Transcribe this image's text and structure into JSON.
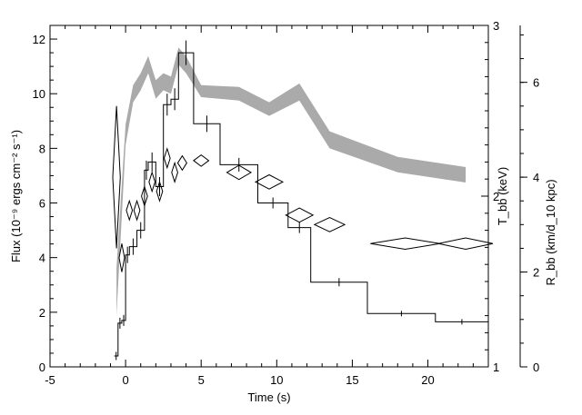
{
  "chart_data": {
    "type": "line",
    "title": "",
    "xlabel": "Time (s)",
    "ylabel_left": "Flux (10⁻⁹ ergs cm⁻² s⁻¹)",
    "ylabel_right_inner": "T_bb (keV)",
    "ylabel_right_outer": "R_bb (km/d_10 kpc)",
    "xlim": [
      -5,
      24
    ],
    "ylim_flux": [
      0,
      12.5
    ],
    "ylim_temp": [
      1,
      3
    ],
    "ylim_radius": [
      0,
      7.2
    ],
    "x_ticks": [
      -5,
      0,
      5,
      10,
      15,
      20
    ],
    "flux_ticks": [
      0,
      2,
      4,
      6,
      8,
      10,
      12
    ],
    "temp_ticks": [
      1,
      2,
      3
    ],
    "radius_ticks": [
      0,
      2,
      4,
      6
    ],
    "grid": false,
    "legend": "none",
    "series": [
      {
        "kind": "flux-histogram",
        "bins": [
          {
            "x0": -0.75,
            "x1": -0.5,
            "y": 0.4,
            "err": 0.15
          },
          {
            "x0": -0.5,
            "x1": -0.25,
            "y": 1.6,
            "err": 0.2
          },
          {
            "x0": -0.25,
            "x1": 0.0,
            "y": 1.7,
            "err": 0.2
          },
          {
            "x0": 0.0,
            "x1": 0.25,
            "y": 4.1,
            "err": 0.3
          },
          {
            "x0": 0.25,
            "x1": 0.75,
            "y": 4.4,
            "err": 0.3
          },
          {
            "x0": 0.75,
            "x1": 1.25,
            "y": 5.0,
            "err": 0.3
          },
          {
            "x0": 1.25,
            "x1": 1.5,
            "y": 7.2,
            "err": 0.35
          },
          {
            "x0": 1.5,
            "x1": 2.0,
            "y": 7.5,
            "err": 0.35
          },
          {
            "x0": 2.0,
            "x1": 2.5,
            "y": 6.6,
            "err": 0.35
          },
          {
            "x0": 2.5,
            "x1": 3.0,
            "y": 9.6,
            "err": 0.4
          },
          {
            "x0": 3.0,
            "x1": 3.5,
            "y": 9.8,
            "err": 0.4
          },
          {
            "x0": 3.5,
            "x1": 4.5,
            "y": 11.5,
            "err": 0.45
          },
          {
            "x0": 4.5,
            "x1": 6.25,
            "y": 8.9,
            "err": 0.3
          },
          {
            "x0": 6.25,
            "x1": 8.75,
            "y": 7.4,
            "err": 0.25
          },
          {
            "x0": 8.75,
            "x1": 10.75,
            "y": 6.0,
            "err": 0.2
          },
          {
            "x0": 10.75,
            "x1": 12.25,
            "y": 5.1,
            "err": 0.2
          },
          {
            "x0": 12.25,
            "x1": 16.0,
            "y": 3.1,
            "err": 0.15
          },
          {
            "x0": 16.0,
            "x1": 20.5,
            "y": 1.95,
            "err": 0.1
          },
          {
            "x0": 20.5,
            "x1": 24.0,
            "y": 1.65,
            "err": 0.1
          }
        ]
      },
      {
        "kind": "temperature-band",
        "axis": "temp",
        "points": [
          {
            "x": -0.6,
            "lo": 1.3,
            "hi": 1.58
          },
          {
            "x": 0.0,
            "lo": 2.3,
            "hi": 2.42
          },
          {
            "x": 0.5,
            "lo": 2.55,
            "hi": 2.65
          },
          {
            "x": 1.0,
            "lo": 2.62,
            "hi": 2.72
          },
          {
            "x": 1.5,
            "lo": 2.72,
            "hi": 2.82
          },
          {
            "x": 2.0,
            "lo": 2.57,
            "hi": 2.68
          },
          {
            "x": 2.5,
            "lo": 2.62,
            "hi": 2.72
          },
          {
            "x": 3.0,
            "lo": 2.6,
            "hi": 2.7
          },
          {
            "x": 3.5,
            "lo": 2.77,
            "hi": 2.87
          },
          {
            "x": 4.0,
            "lo": 2.72,
            "hi": 2.82
          },
          {
            "x": 5.0,
            "lo": 2.58,
            "hi": 2.65
          },
          {
            "x": 7.5,
            "lo": 2.56,
            "hi": 2.64
          },
          {
            "x": 9.5,
            "lo": 2.47,
            "hi": 2.55
          },
          {
            "x": 11.5,
            "lo": 2.56,
            "hi": 2.66
          },
          {
            "x": 13.5,
            "lo": 2.28,
            "hi": 2.38
          },
          {
            "x": 18.0,
            "lo": 2.14,
            "hi": 2.23
          },
          {
            "x": 22.5,
            "lo": 2.08,
            "hi": 2.17
          }
        ]
      },
      {
        "kind": "radius-diamonds",
        "axis": "radius",
        "points": [
          {
            "x": -0.6,
            "y": 4.0,
            "xerr": 0.25,
            "yerr": 1.5
          },
          {
            "x": -0.25,
            "y": 2.3,
            "xerr": 0.18,
            "yerr": 0.3
          },
          {
            "x": 0.25,
            "y": 3.3,
            "xerr": 0.2,
            "yerr": 0.2
          },
          {
            "x": 0.75,
            "y": 3.3,
            "xerr": 0.2,
            "yerr": 0.2
          },
          {
            "x": 1.25,
            "y": 3.6,
            "xerr": 0.2,
            "yerr": 0.2
          },
          {
            "x": 1.75,
            "y": 3.9,
            "xerr": 0.2,
            "yerr": 0.2
          },
          {
            "x": 2.25,
            "y": 3.7,
            "xerr": 0.2,
            "yerr": 0.2
          },
          {
            "x": 2.75,
            "y": 4.4,
            "xerr": 0.2,
            "yerr": 0.2
          },
          {
            "x": 3.25,
            "y": 4.1,
            "xerr": 0.2,
            "yerr": 0.2
          },
          {
            "x": 3.75,
            "y": 4.3,
            "xerr": 0.3,
            "yerr": 0.15
          },
          {
            "x": 5.0,
            "y": 4.35,
            "xerr": 0.5,
            "yerr": 0.12
          },
          {
            "x": 7.5,
            "y": 4.1,
            "xerr": 0.8,
            "yerr": 0.15
          },
          {
            "x": 9.5,
            "y": 3.9,
            "xerr": 0.9,
            "yerr": 0.15
          },
          {
            "x": 11.5,
            "y": 3.2,
            "xerr": 0.9,
            "yerr": 0.15
          },
          {
            "x": 13.5,
            "y": 3.0,
            "xerr": 1.0,
            "yerr": 0.15
          },
          {
            "x": 18.5,
            "y": 2.6,
            "xerr": 2.3,
            "yerr": 0.12
          },
          {
            "x": 22.5,
            "y": 2.6,
            "xerr": 1.8,
            "yerr": 0.12
          }
        ]
      }
    ]
  }
}
